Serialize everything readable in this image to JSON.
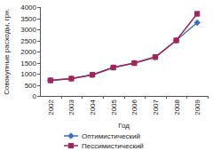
{
  "chart_data": {
    "type": "line",
    "x_label": "Год",
    "y_label": "Совокупные расходы, грн.",
    "categories": [
      "2002",
      "2003",
      "2004",
      "2005",
      "2006",
      "2007",
      "2008",
      "2009"
    ],
    "series": [
      {
        "name": "Оптимистический",
        "color": "#3d6fc2",
        "marker": "diamond",
        "values": [
          700,
          780,
          950,
          1280,
          1480,
          1750,
          2500,
          3300
        ]
      },
      {
        "name": "Пессимистический",
        "color": "#a3245c",
        "marker": "square",
        "values": [
          700,
          780,
          950,
          1280,
          1480,
          1750,
          2500,
          3700
        ]
      }
    ],
    "ylim": [
      0,
      4000
    ],
    "yticks": [
      0,
      500,
      1000,
      1500,
      2000,
      2500,
      3000,
      3500,
      4000
    ],
    "grid": false,
    "legend": "bottom"
  }
}
